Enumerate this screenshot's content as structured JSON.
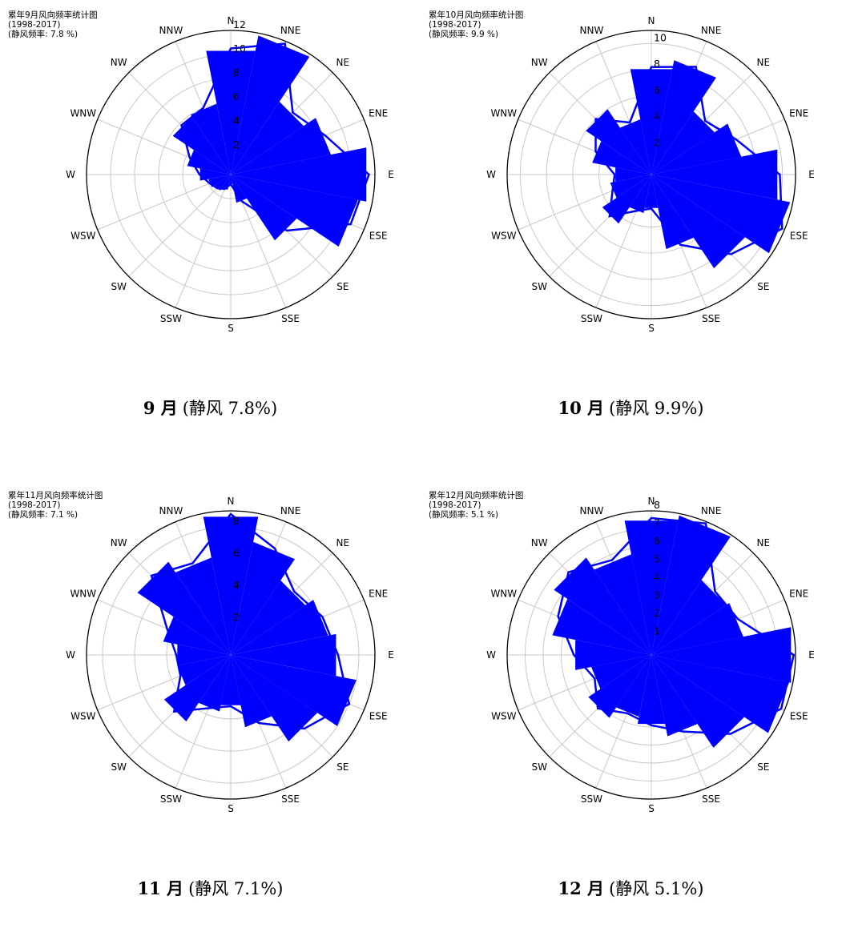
{
  "directions": [
    "N",
    "NNE",
    "NE",
    "ENE",
    "E",
    "ESE",
    "SE",
    "SSE",
    "S",
    "SSW",
    "SW",
    "WSW",
    "W",
    "WNW",
    "NW",
    "NNW"
  ],
  "colors": {
    "fill": "#0000ff",
    "outline": "#0000ff",
    "grid": "#c8c8c8",
    "frame": "#000000"
  },
  "chart_data": [
    {
      "type": "radar",
      "title": "累年9月风向频率统计图",
      "subtitle": "(1998-2017)",
      "calm_text": "(静风频率: 7.8 %)",
      "caption_month": "9 月",
      "caption_calm": "(静风 7.8%)",
      "rlim": [
        0,
        12
      ],
      "ticks": [
        2,
        4,
        6,
        8,
        10,
        12
      ],
      "tick_labels": [
        "2",
        "4",
        "6",
        "8",
        "10",
        "12"
      ],
      "grid": true,
      "series": [
        {
          "values": [
            10.5,
            11.8,
            7.3,
            8.5,
            11.5,
            10.8,
            6.6,
            2.4,
            0.8,
            1.3,
            1.6,
            1.9,
            2.6,
            3.7,
            5.8,
            6.0
          ]
        }
      ]
    },
    {
      "type": "radar",
      "title": "累年10月风向频率统计图",
      "subtitle": "(1998-2017)",
      "calm_text": "(静风频率: 9.9 %)",
      "caption_month": "10 月",
      "caption_calm": "(静风 9.9%)",
      "rlim": [
        0,
        11
      ],
      "ticks": [
        2,
        4,
        6,
        8,
        10
      ],
      "tick_labels": [
        "2",
        "4",
        "6",
        "8",
        "10"
      ],
      "grid": true,
      "series": [
        {
          "values": [
            8.2,
            8.9,
            5.8,
            7.0,
            9.8,
            10.8,
            8.6,
            5.8,
            2.6,
            3.0,
            4.5,
            3.2,
            2.8,
            4.6,
            6.0,
            4.3
          ]
        }
      ]
    },
    {
      "type": "radar",
      "title": "累年11月风向频率统计图",
      "subtitle": "(1998-2017)",
      "calm_text": "(静风频率: 7.1 %)",
      "caption_month": "11 月",
      "caption_calm": "(静风 7.1%)",
      "rlim": [
        0,
        9
      ],
      "ticks": [
        2,
        4,
        6,
        8
      ],
      "tick_labels": [
        "2",
        "4",
        "6",
        "8"
      ],
      "grid": true,
      "series": [
        {
          "values": [
            8.8,
            7.2,
            5.6,
            6.2,
            6.7,
            8.0,
            6.5,
            4.6,
            3.2,
            3.6,
            5.0,
            3.4,
            3.4,
            4.3,
            7.0,
            6.2
          ]
        }
      ]
    },
    {
      "type": "radar",
      "title": "累年12月风向频率统计图",
      "subtitle": "(1998-2017)",
      "calm_text": "(静风频率: 5.1 %)",
      "caption_month": "12 月",
      "caption_calm": "(静风 5.1%)",
      "rlim": [
        0,
        8
      ],
      "ticks": [
        1,
        2,
        3,
        4,
        5,
        6,
        7,
        8
      ],
      "tick_labels": [
        "1",
        "2",
        "3",
        "4",
        "5",
        "6",
        "7",
        "8"
      ],
      "grid": true,
      "series": [
        {
          "values": [
            7.6,
            7.9,
            5.0,
            5.2,
            7.9,
            7.8,
            6.2,
            4.6,
            3.9,
            3.5,
            4.2,
            3.4,
            4.3,
            5.6,
            6.5,
            5.7
          ]
        }
      ]
    }
  ]
}
